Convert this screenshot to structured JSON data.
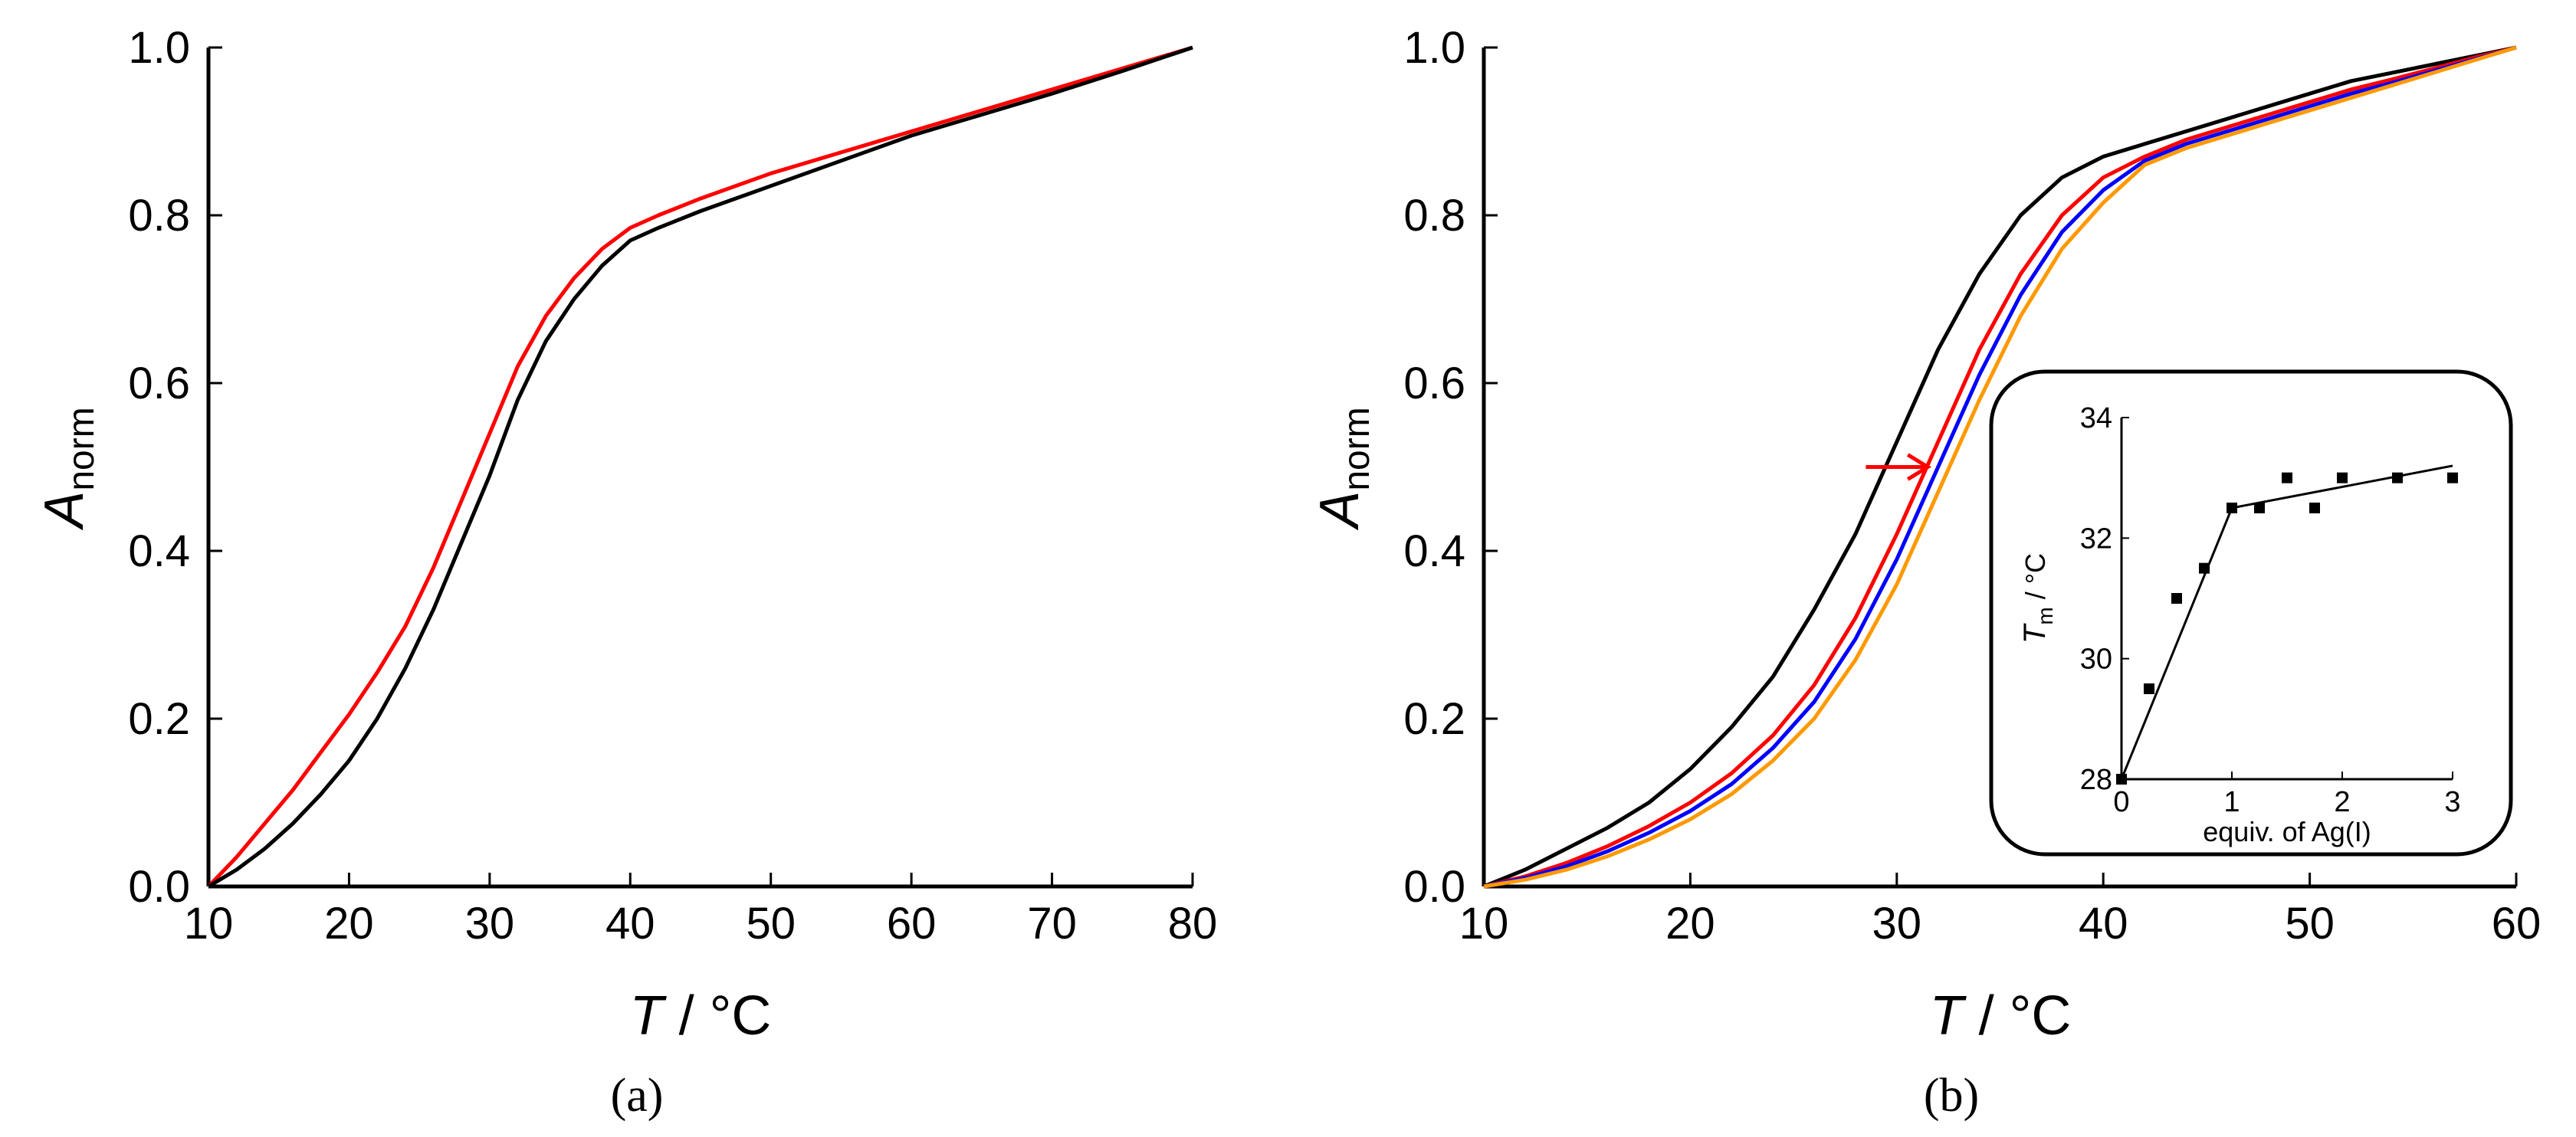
{
  "chart_data": [
    {
      "type": "line",
      "panel_label": "(a)",
      "xlabel_var": "T",
      "xlabel_unit": " / °C",
      "ylabel_var": "A",
      "ylabel_sub": "norm",
      "xlim": [
        10,
        80
      ],
      "ylim": [
        0.0,
        1.0
      ],
      "xticks": [
        "10",
        "20",
        "30",
        "40",
        "50",
        "60",
        "70",
        "80"
      ],
      "yticks": [
        "0.0",
        "0.2",
        "0.4",
        "0.6",
        "0.8",
        "1.0"
      ],
      "grid": false,
      "series": [
        {
          "color": "#ff0000",
          "x": [
            10,
            12,
            14,
            16,
            18,
            20,
            22,
            24,
            26,
            28,
            30,
            32,
            34,
            36,
            38,
            40,
            42,
            45,
            50,
            55,
            60,
            65,
            70,
            75,
            80
          ],
          "y": [
            0.0,
            0.035,
            0.075,
            0.115,
            0.16,
            0.205,
            0.255,
            0.31,
            0.38,
            0.46,
            0.54,
            0.62,
            0.68,
            0.725,
            0.76,
            0.785,
            0.8,
            0.82,
            0.85,
            0.875,
            0.9,
            0.925,
            0.95,
            0.975,
            1.0
          ]
        },
        {
          "color": "#000000",
          "x": [
            10,
            12,
            14,
            16,
            18,
            20,
            22,
            24,
            26,
            28,
            30,
            32,
            34,
            36,
            38,
            40,
            42,
            45,
            50,
            55,
            60,
            65,
            70,
            75,
            80
          ],
          "y": [
            0.0,
            0.02,
            0.045,
            0.075,
            0.11,
            0.15,
            0.2,
            0.26,
            0.33,
            0.41,
            0.49,
            0.58,
            0.65,
            0.7,
            0.74,
            0.77,
            0.785,
            0.805,
            0.835,
            0.865,
            0.895,
            0.92,
            0.945,
            0.972,
            1.0
          ]
        }
      ]
    },
    {
      "type": "line",
      "panel_label": "(b)",
      "xlabel_var": "T",
      "xlabel_unit": " / °C",
      "ylabel_var": "A",
      "ylabel_sub": "norm",
      "xlim": [
        10,
        60
      ],
      "ylim": [
        0.0,
        1.0
      ],
      "xticks": [
        "10",
        "20",
        "30",
        "40",
        "50",
        "60"
      ],
      "yticks": [
        "0.0",
        "0.2",
        "0.4",
        "0.6",
        "0.8",
        "1.0"
      ],
      "grid": false,
      "series": [
        {
          "color": "#000000",
          "x": [
            10,
            12,
            14,
            16,
            18,
            20,
            22,
            24,
            26,
            28,
            30,
            32,
            34,
            36,
            38,
            40,
            42,
            44,
            46,
            48,
            50,
            52,
            54,
            56,
            58,
            60
          ],
          "y": [
            0.0,
            0.02,
            0.045,
            0.07,
            0.1,
            0.14,
            0.19,
            0.25,
            0.33,
            0.42,
            0.53,
            0.64,
            0.73,
            0.8,
            0.845,
            0.87,
            0.885,
            0.9,
            0.915,
            0.93,
            0.945,
            0.96,
            0.97,
            0.98,
            0.99,
            1.0
          ]
        },
        {
          "color": "#ff0000",
          "x": [
            10,
            12,
            14,
            16,
            18,
            20,
            22,
            24,
            26,
            28,
            30,
            32,
            34,
            36,
            38,
            40,
            42,
            44,
            46,
            48,
            50,
            52,
            54,
            56,
            58,
            60
          ],
          "y": [
            0.0,
            0.012,
            0.028,
            0.048,
            0.072,
            0.1,
            0.135,
            0.18,
            0.24,
            0.32,
            0.42,
            0.53,
            0.64,
            0.73,
            0.8,
            0.845,
            0.87,
            0.89,
            0.905,
            0.92,
            0.935,
            0.95,
            0.962,
            0.975,
            0.988,
            1.0
          ]
        },
        {
          "color": "#0000ff",
          "x": [
            10,
            12,
            14,
            16,
            18,
            20,
            22,
            24,
            26,
            28,
            30,
            32,
            34,
            36,
            38,
            40,
            42,
            44,
            46,
            48,
            50,
            52,
            54,
            56,
            58,
            60
          ],
          "y": [
            0.0,
            0.01,
            0.024,
            0.042,
            0.064,
            0.09,
            0.122,
            0.165,
            0.22,
            0.295,
            0.39,
            0.5,
            0.61,
            0.705,
            0.78,
            0.83,
            0.865,
            0.885,
            0.9,
            0.915,
            0.93,
            0.945,
            0.958,
            0.972,
            0.986,
            1.0
          ]
        },
        {
          "color": "#ff9900",
          "x": [
            10,
            12,
            14,
            16,
            18,
            20,
            22,
            24,
            26,
            28,
            30,
            32,
            34,
            36,
            38,
            40,
            42,
            44,
            46,
            48,
            50,
            52,
            54,
            56,
            58,
            60
          ],
          "y": [
            0.0,
            0.008,
            0.02,
            0.036,
            0.056,
            0.08,
            0.11,
            0.15,
            0.2,
            0.27,
            0.36,
            0.47,
            0.58,
            0.68,
            0.76,
            0.815,
            0.86,
            0.88,
            0.895,
            0.91,
            0.925,
            0.94,
            0.955,
            0.97,
            0.985,
            1.0
          ]
        }
      ],
      "annotation_arrow": {
        "x_start": 28.5,
        "x_end": 31.5,
        "y": 0.5,
        "color": "#ff0000"
      },
      "inset": {
        "type": "scatter",
        "xlabel": "equiv. of Ag(I)",
        "ylabel_var": "T",
        "ylabel_sub": "m",
        "ylabel_unit": " / °C",
        "xlim": [
          0,
          3
        ],
        "ylim": [
          28,
          34
        ],
        "xticks": [
          "0",
          "1",
          "2",
          "3"
        ],
        "yticks": [
          "28",
          "30",
          "32",
          "34"
        ],
        "points": {
          "x": [
            0,
            0.25,
            0.5,
            0.75,
            1.0,
            1.25,
            1.5,
            1.75,
            2.0,
            2.5,
            3.0
          ],
          "y": [
            28.0,
            29.5,
            31.0,
            31.5,
            32.5,
            32.5,
            33.0,
            32.5,
            33.0,
            33.0,
            33.0
          ]
        },
        "fit_lines": [
          {
            "x": [
              0,
              1
            ],
            "y": [
              28.0,
              32.5
            ]
          },
          {
            "x": [
              1,
              3
            ],
            "y": [
              32.5,
              33.2
            ]
          }
        ]
      }
    }
  ]
}
